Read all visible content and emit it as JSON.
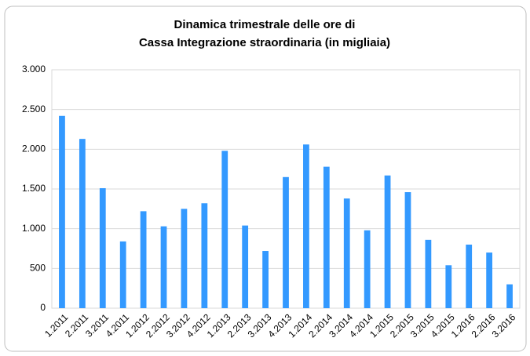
{
  "chart_data": {
    "type": "bar",
    "title": [
      "Dinamica trimestrale delle ore di",
      "Cassa Integrazione straordinaria (in migliaia)"
    ],
    "categories": [
      "1.2011",
      "2.2011",
      "3.2011",
      "4.2011",
      "1.2012",
      "2.2012",
      "3.2012",
      "4.2012",
      "1.2013",
      "2.2013",
      "3.2013",
      "4.2013",
      "1.2014",
      "2.2014",
      "3.2014",
      "4.2014",
      "1.2015",
      "2.2015",
      "3.2015",
      "4.2015",
      "1.2016",
      "2.2016",
      "3.2016"
    ],
    "values": [
      2420,
      2130,
      1510,
      840,
      1220,
      1030,
      1250,
      1320,
      1980,
      1040,
      720,
      1650,
      2060,
      1780,
      1380,
      980,
      1670,
      1460,
      860,
      540,
      800,
      700,
      300
    ],
    "color": "#3399ff",
    "ylim": [
      0,
      3000
    ],
    "yticks": [
      {
        "value": 0,
        "label": "0"
      },
      {
        "value": 500,
        "label": "500"
      },
      {
        "value": 1000,
        "label": "1.000"
      },
      {
        "value": 1500,
        "label": "1.500"
      },
      {
        "value": 2000,
        "label": "2.000"
      },
      {
        "value": 2500,
        "label": "2.500"
      },
      {
        "value": 3000,
        "label": "3.000"
      }
    ],
    "grid": true
  }
}
